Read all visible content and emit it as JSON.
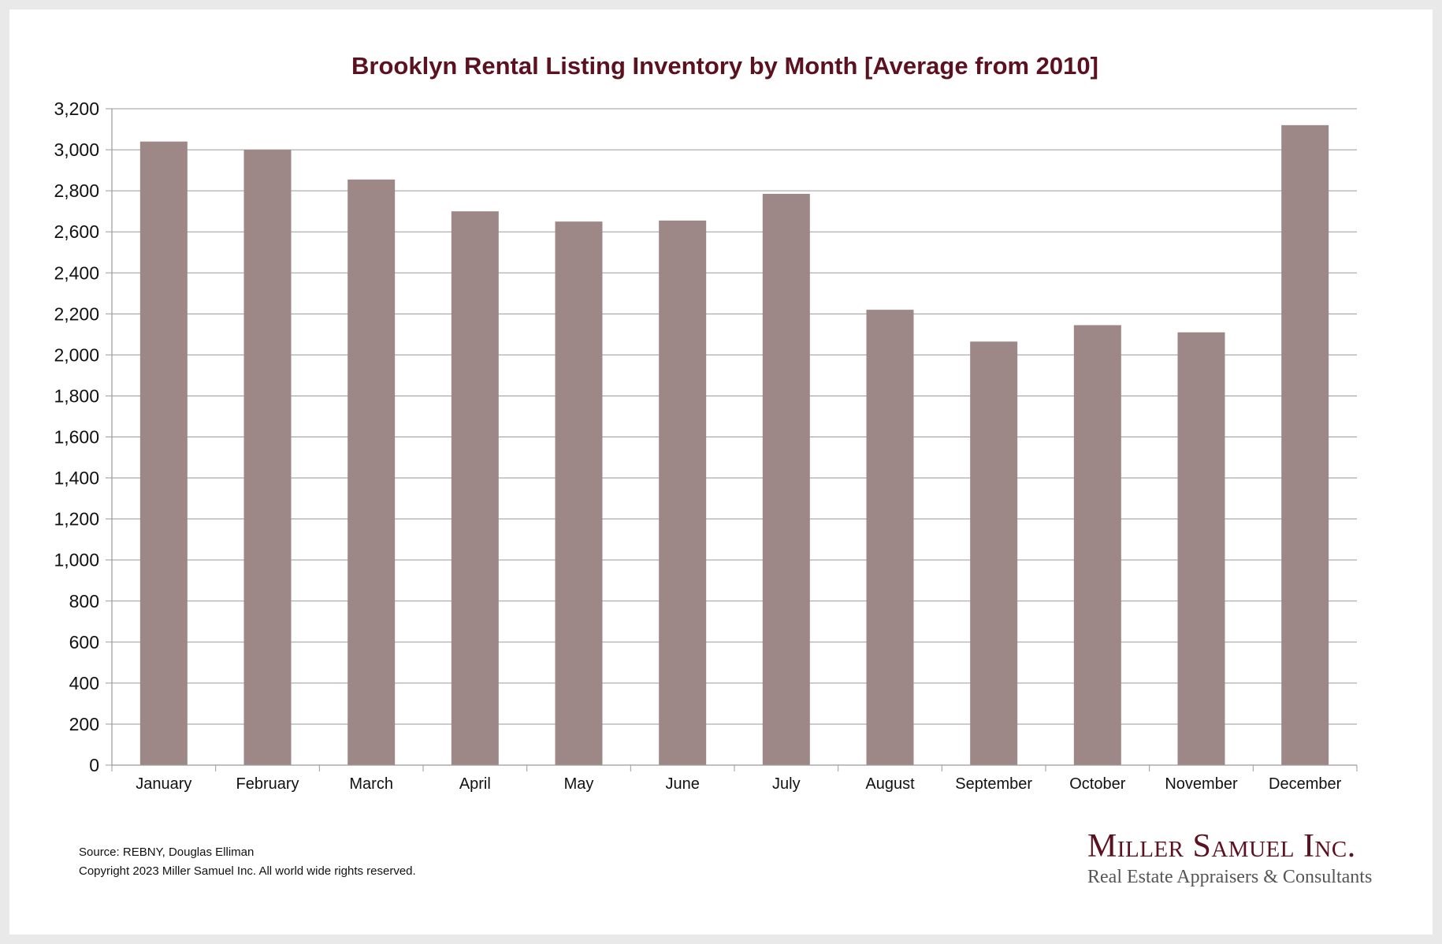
{
  "chart_data": {
    "type": "bar",
    "title": "Brooklyn Rental Listing Inventory by Month [Average from 2010]",
    "categories": [
      "January",
      "February",
      "March",
      "April",
      "May",
      "June",
      "July",
      "August",
      "September",
      "October",
      "November",
      "December"
    ],
    "values": [
      3040,
      3000,
      2855,
      2700,
      2650,
      2655,
      2785,
      2220,
      2065,
      2145,
      2110,
      3120
    ],
    "ylim": [
      0,
      3200
    ],
    "y_ticks": [
      "0",
      "200",
      "400",
      "600",
      "800",
      "1,000",
      "1,200",
      "1,400",
      "1,600",
      "1,800",
      "2,000",
      "2,200",
      "2,400",
      "2,600",
      "2,800",
      "3,000",
      "3,200"
    ],
    "xlabel": "",
    "ylabel": "",
    "grid": true,
    "bar_color": "#9e8887",
    "title_color": "#5c1120"
  },
  "footer": {
    "source": "Source: REBNY, Douglas Elliman",
    "copyright": "Copyright 2023 Miller Samuel Inc.  All world wide rights reserved."
  },
  "logo": {
    "name": "Miller Samuel Inc.",
    "tagline": "Real Estate Appraisers & Consultants"
  }
}
